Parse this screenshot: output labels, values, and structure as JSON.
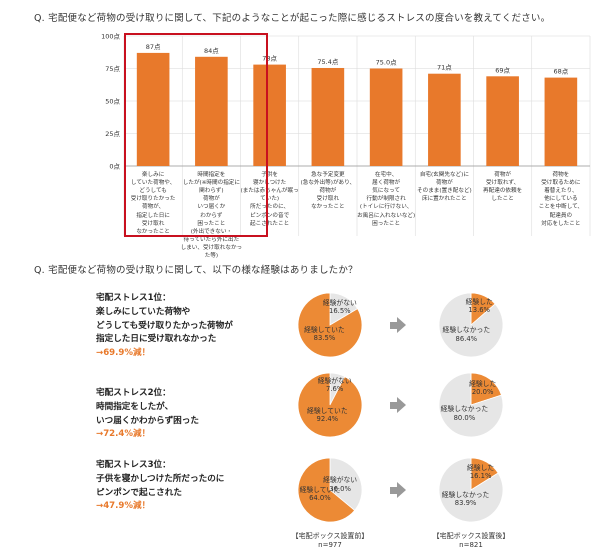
{
  "question1": "Q. 宅配便など荷物の受け取りに関して、下記のようなことが起こった際に感じるストレスの度合いを教えてください。",
  "question2": "Q. 宅配便など荷物の受け取りに関して、以下の様な経験はありましたか？",
  "chart_data": [
    {
      "type": "bar",
      "categories": [
        "楽しみに\nしていた荷物や、\nどうしても\n受け取りたかった\n荷物が、\n指定した日に\n受け取れ\nなかったこと",
        "時間指定を\nしたが(※時間の指定に\n関わらず)\n荷物が\nいつ届くか\nわからず\n困ったこと\n(外出できない・\n待っていたら外に出た\nしまい、受け取れなかった等)",
        "子供を\n寝かしつけた\n(または赤ちゃんが眠っていた)\n所だったのに、\nピンポンの音で\n起こされたこと",
        "急な予定変更\n(急な外出等)があり、\n荷物が\n受け取れ\nなかったこと",
        "在宅中、\n届く荷物が\n気になって\n行動が制限され\n(トイレに行けない、\nお風呂に入れないなど)\n困ったこと",
        "自宅(玄関先など)に\n荷物が\nそのまま(置き配など)\n床に置かれたこと",
        "荷物が\n受け取れず、\n再配達の依頼を\nしたこと",
        "荷物を\n受け取るために\n着替えたり、\n他にしている\nことを中断して、\n配達員の\n対応をしたこと"
      ],
      "values": [
        87,
        84,
        78,
        75.4,
        75.0,
        71,
        69,
        68
      ],
      "value_labels": [
        "87点",
        "84点",
        "78点",
        "75.4点",
        "75.0点",
        "71点",
        "69点",
        "68点"
      ],
      "yticks": [
        "100点",
        "75点",
        "50点",
        "25点",
        "0点"
      ],
      "ylim": [
        0,
        100
      ],
      "color": "#e8792b",
      "highlight_color": "#c8101f"
    },
    {
      "type": "pie",
      "row": 1,
      "before": {
        "slices": [
          {
            "label": "経験がない",
            "pct": "16.5%",
            "value": 16.5,
            "color": "#e6e6e6"
          },
          {
            "label": "経験していた",
            "pct": "83.5%",
            "value": 83.5,
            "color": "#ec8a35"
          }
        ]
      },
      "after": {
        "slices": [
          {
            "label": "経験した",
            "pct": "13.6%",
            "value": 13.6,
            "color": "#ec8a35"
          },
          {
            "label": "経験しなかった",
            "pct": "86.4%",
            "value": 86.4,
            "color": "#e6e6e6"
          }
        ]
      }
    },
    {
      "type": "pie",
      "row": 2,
      "before": {
        "slices": [
          {
            "label": "経験がない",
            "pct": "7.6%",
            "value": 7.6,
            "color": "#e6e6e6"
          },
          {
            "label": "経験していた",
            "pct": "92.4%",
            "value": 92.4,
            "color": "#ec8a35"
          }
        ]
      },
      "after": {
        "slices": [
          {
            "label": "経験した",
            "pct": "20.0%",
            "value": 20.0,
            "color": "#ec8a35"
          },
          {
            "label": "経験しなかった",
            "pct": "80.0%",
            "value": 80.0,
            "color": "#e6e6e6"
          }
        ]
      }
    },
    {
      "type": "pie",
      "row": 3,
      "before": {
        "slices": [
          {
            "label": "経験がない",
            "pct": "36.0%",
            "value": 36.0,
            "color": "#e6e6e6"
          },
          {
            "label": "経験していた",
            "pct": "64.0%",
            "value": 64.0,
            "color": "#ec8a35"
          }
        ]
      },
      "after": {
        "slices": [
          {
            "label": "経験した",
            "pct": "16.1%",
            "value": 16.1,
            "color": "#ec8a35"
          },
          {
            "label": "経験しなかった",
            "pct": "83.9%",
            "value": 83.9,
            "color": "#e6e6e6"
          }
        ]
      }
    }
  ],
  "stress": [
    {
      "title": "宅配ストレス1位：",
      "desc": "楽しみにしていた荷物や\nどうしても受け取りたかった荷物が\n指定した日に受け取れなかった",
      "result": "→69.9%減！"
    },
    {
      "title": "宅配ストレス2位：",
      "desc": "時間指定をしたが、\nいつ届くかわからず困った",
      "result": "→72.4%減！"
    },
    {
      "title": "宅配ストレス3位：",
      "desc": "子供を寝かしつけた所だったのに\nピンポンで起こされた",
      "result": "→47.9%減！"
    }
  ],
  "captions": {
    "before": "【宅配ボックス設置前】",
    "before_n": "n=977",
    "after": "【宅配ボックス設置後】",
    "after_n": "n=821"
  }
}
